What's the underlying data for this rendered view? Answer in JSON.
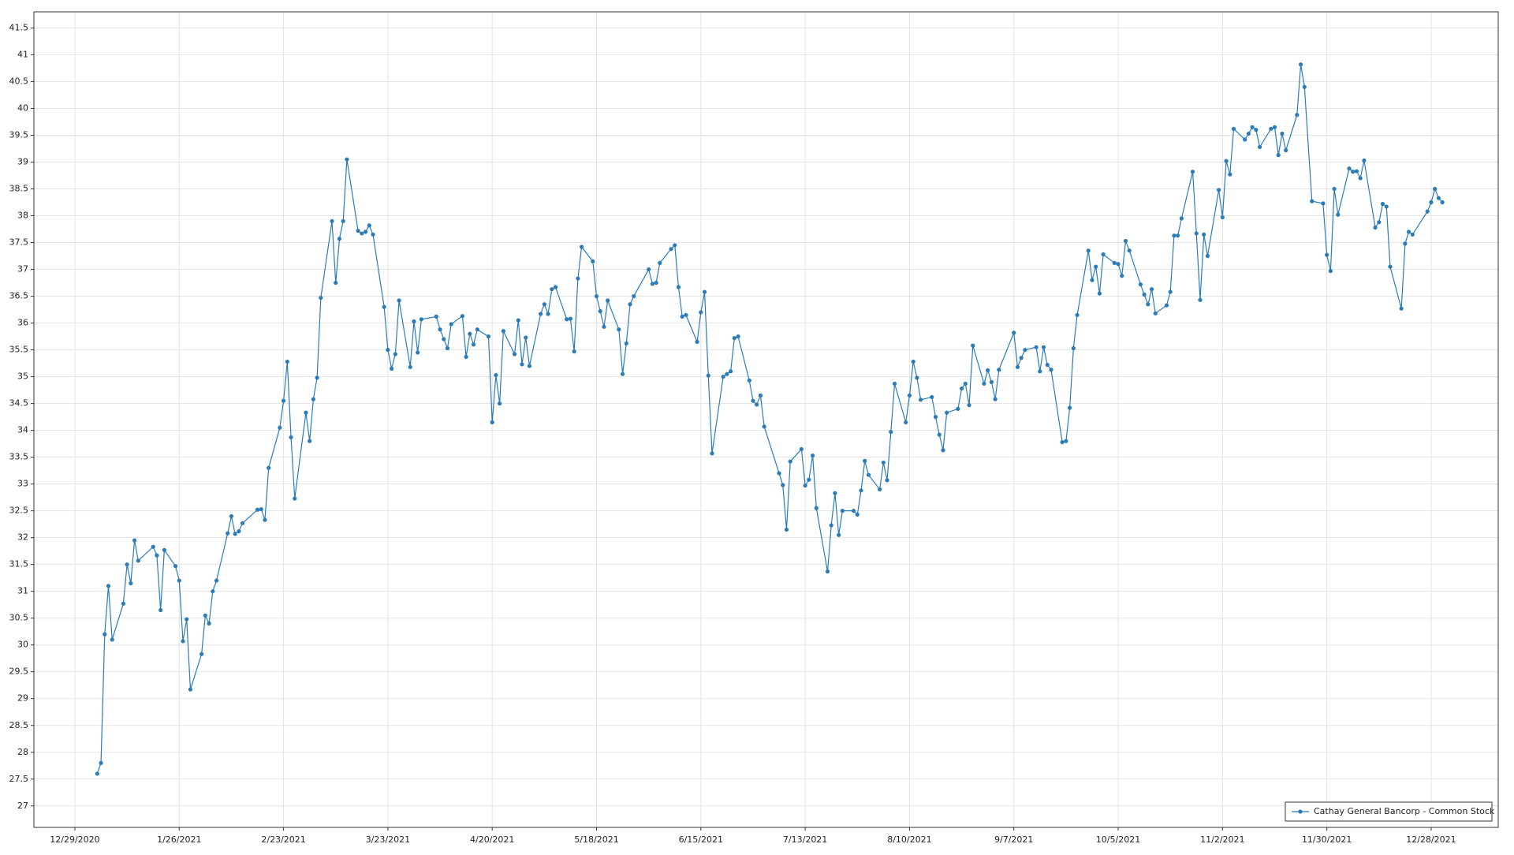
{
  "chart_data": {
    "type": "line",
    "x": [
      "1/4/2021",
      "1/5/2021",
      "1/6/2021",
      "1/7/2021",
      "1/8/2021",
      "1/11/2021",
      "1/12/2021",
      "1/13/2021",
      "1/14/2021",
      "1/15/2021",
      "1/19/2021",
      "1/20/2021",
      "1/21/2021",
      "1/22/2021",
      "1/25/2021",
      "1/26/2021",
      "1/27/2021",
      "1/28/2021",
      "1/29/2021",
      "2/1/2021",
      "2/2/2021",
      "2/3/2021",
      "2/4/2021",
      "2/5/2021",
      "2/8/2021",
      "2/9/2021",
      "2/10/2021",
      "2/11/2021",
      "2/12/2021",
      "2/16/2021",
      "2/17/2021",
      "2/18/2021",
      "2/19/2021",
      "2/22/2021",
      "2/23/2021",
      "2/24/2021",
      "2/25/2021",
      "2/26/2021",
      "3/1/2021",
      "3/2/2021",
      "3/3/2021",
      "3/4/2021",
      "3/5/2021",
      "3/8/2021",
      "3/9/2021",
      "3/10/2021",
      "3/11/2021",
      "3/12/2021",
      "3/15/2021",
      "3/16/2021",
      "3/17/2021",
      "3/18/2021",
      "3/19/2021",
      "3/22/2021",
      "3/23/2021",
      "3/24/2021",
      "3/25/2021",
      "3/26/2021",
      "3/29/2021",
      "3/30/2021",
      "3/31/2021",
      "4/1/2021",
      "4/5/2021",
      "4/6/2021",
      "4/7/2021",
      "4/8/2021",
      "4/9/2021",
      "4/12/2021",
      "4/13/2021",
      "4/14/2021",
      "4/15/2021",
      "4/16/2021",
      "4/19/2021",
      "4/20/2021",
      "4/21/2021",
      "4/22/2021",
      "4/23/2021",
      "4/26/2021",
      "4/27/2021",
      "4/28/2021",
      "4/29/2021",
      "4/30/2021",
      "5/3/2021",
      "5/4/2021",
      "5/5/2021",
      "5/6/2021",
      "5/7/2021",
      "5/10/2021",
      "5/11/2021",
      "5/12/2021",
      "5/13/2021",
      "5/14/2021",
      "5/17/2021",
      "5/18/2021",
      "5/19/2021",
      "5/20/2021",
      "5/21/2021",
      "5/24/2021",
      "5/25/2021",
      "5/26/2021",
      "5/27/2021",
      "5/28/2021",
      "6/1/2021",
      "6/2/2021",
      "6/3/2021",
      "6/4/2021",
      "6/7/2021",
      "6/8/2021",
      "6/9/2021",
      "6/10/2021",
      "6/11/2021",
      "6/14/2021",
      "6/15/2021",
      "6/16/2021",
      "6/17/2021",
      "6/18/2021",
      "6/21/2021",
      "6/22/2021",
      "6/23/2021",
      "6/24/2021",
      "6/25/2021",
      "6/28/2021",
      "6/29/2021",
      "6/30/2021",
      "7/1/2021",
      "7/2/2021",
      "7/6/2021",
      "7/7/2021",
      "7/8/2021",
      "7/9/2021",
      "7/12/2021",
      "7/13/2021",
      "7/14/2021",
      "7/15/2021",
      "7/16/2021",
      "7/19/2021",
      "7/20/2021",
      "7/21/2021",
      "7/22/2021",
      "7/23/2021",
      "7/26/2021",
      "7/27/2021",
      "7/28/2021",
      "7/29/2021",
      "7/30/2021",
      "8/2/2021",
      "8/3/2021",
      "8/4/2021",
      "8/5/2021",
      "8/6/2021",
      "8/9/2021",
      "8/10/2021",
      "8/11/2021",
      "8/12/2021",
      "8/13/2021",
      "8/16/2021",
      "8/17/2021",
      "8/18/2021",
      "8/19/2021",
      "8/20/2021",
      "8/23/2021",
      "8/24/2021",
      "8/25/2021",
      "8/26/2021",
      "8/27/2021",
      "8/30/2021",
      "8/31/2021",
      "9/1/2021",
      "9/2/2021",
      "9/3/2021",
      "9/7/2021",
      "9/8/2021",
      "9/9/2021",
      "9/10/2021",
      "9/13/2021",
      "9/14/2021",
      "9/15/2021",
      "9/16/2021",
      "9/17/2021",
      "9/20/2021",
      "9/21/2021",
      "9/22/2021",
      "9/23/2021",
      "9/24/2021",
      "9/27/2021",
      "9/28/2021",
      "9/29/2021",
      "9/30/2021",
      "10/1/2021",
      "10/4/2021",
      "10/5/2021",
      "10/6/2021",
      "10/7/2021",
      "10/8/2021",
      "10/11/2021",
      "10/12/2021",
      "10/13/2021",
      "10/14/2021",
      "10/15/2021",
      "10/18/2021",
      "10/19/2021",
      "10/20/2021",
      "10/21/2021",
      "10/22/2021",
      "10/25/2021",
      "10/26/2021",
      "10/27/2021",
      "10/28/2021",
      "10/29/2021",
      "11/1/2021",
      "11/2/2021",
      "11/3/2021",
      "11/4/2021",
      "11/5/2021",
      "11/8/2021",
      "11/9/2021",
      "11/10/2021",
      "11/11/2021",
      "11/12/2021",
      "11/15/2021",
      "11/16/2021",
      "11/17/2021",
      "11/18/2021",
      "11/19/2021",
      "11/22/2021",
      "11/23/2021",
      "11/24/2021",
      "11/26/2021",
      "11/29/2021",
      "11/30/2021",
      "12/1/2021",
      "12/2/2021",
      "12/3/2021",
      "12/6/2021",
      "12/7/2021",
      "12/8/2021",
      "12/9/2021",
      "12/10/2021",
      "12/13/2021",
      "12/14/2021",
      "12/15/2021",
      "12/16/2021",
      "12/17/2021",
      "12/20/2021",
      "12/21/2021",
      "12/22/2021",
      "12/23/2021",
      "12/27/2021",
      "12/28/2021",
      "12/29/2021",
      "12/30/2021",
      "12/31/2021"
    ],
    "series": [
      {
        "name": "Cathay General Bancorp - Common Stock",
        "color": "#2b7bb9",
        "values": [
          27.6,
          27.8,
          30.2,
          31.1,
          30.1,
          30.77,
          31.5,
          31.15,
          31.95,
          31.57,
          31.83,
          31.67,
          30.65,
          31.77,
          31.47,
          31.2,
          30.07,
          30.48,
          29.17,
          29.83,
          30.55,
          30.4,
          31.0,
          31.2,
          32.08,
          32.4,
          32.07,
          32.12,
          32.27,
          32.52,
          32.53,
          32.33,
          33.3,
          34.05,
          34.55,
          35.28,
          33.87,
          32.73,
          34.33,
          33.8,
          34.58,
          34.98,
          36.47,
          37.9,
          36.75,
          37.57,
          37.9,
          39.05,
          37.72,
          37.67,
          37.7,
          37.82,
          37.65,
          36.3,
          35.5,
          35.15,
          35.42,
          36.42,
          35.18,
          36.03,
          35.45,
          36.07,
          36.12,
          35.88,
          35.7,
          35.53,
          35.98,
          36.13,
          35.37,
          35.8,
          35.6,
          35.88,
          35.75,
          34.15,
          35.03,
          34.5,
          35.85,
          35.42,
          36.05,
          35.23,
          35.73,
          35.2,
          36.17,
          36.35,
          36.17,
          36.63,
          36.67,
          36.07,
          36.08,
          35.47,
          36.83,
          37.42,
          37.15,
          36.5,
          36.22,
          35.93,
          36.42,
          35.88,
          35.05,
          35.62,
          36.35,
          36.5,
          37.0,
          36.73,
          36.75,
          37.12,
          37.38,
          37.45,
          36.67,
          36.12,
          36.15,
          35.65,
          36.2,
          36.58,
          35.02,
          33.57,
          35.0,
          35.05,
          35.1,
          35.72,
          35.75,
          34.93,
          34.55,
          34.48,
          34.65,
          34.07,
          33.2,
          32.98,
          32.15,
          33.42,
          33.65,
          32.97,
          33.08,
          33.53,
          32.55,
          31.37,
          32.23,
          32.83,
          32.05,
          32.5,
          32.5,
          32.43,
          32.88,
          33.43,
          33.17,
          32.9,
          33.4,
          33.07,
          33.97,
          34.87,
          34.15,
          34.65,
          35.28,
          34.98,
          34.57,
          34.62,
          34.25,
          33.92,
          33.63,
          34.33,
          34.4,
          34.78,
          34.87,
          34.47,
          35.58,
          34.87,
          35.12,
          34.9,
          34.58,
          35.13,
          35.82,
          35.18,
          35.35,
          35.5,
          35.55,
          35.1,
          35.55,
          35.22,
          35.13,
          33.78,
          33.8,
          34.42,
          35.53,
          36.15,
          37.35,
          36.8,
          37.05,
          36.55,
          37.28,
          37.12,
          37.1,
          36.88,
          37.53,
          37.35,
          36.72,
          36.53,
          36.35,
          36.63,
          36.18,
          36.33,
          36.58,
          37.63,
          37.63,
          37.95,
          38.82,
          37.67,
          36.43,
          37.65,
          37.25,
          38.48,
          37.97,
          39.02,
          38.77,
          39.62,
          39.42,
          39.53,
          39.65,
          39.6,
          39.28,
          39.62,
          39.65,
          39.13,
          39.53,
          39.22,
          39.88,
          40.82,
          40.4,
          38.27,
          38.23,
          37.27,
          36.97,
          38.5,
          38.02,
          38.88,
          38.82,
          38.83,
          38.7,
          39.03,
          37.78,
          37.88,
          38.22,
          38.17,
          37.05,
          36.27,
          37.48,
          37.7,
          37.65,
          38.08,
          38.25,
          38.5,
          38.33,
          38.25
        ]
      }
    ],
    "xlim": [
      "12/18/2020",
      "1/15/2022"
    ],
    "xticks": [
      "12/29/2020",
      "1/26/2021",
      "2/23/2021",
      "3/23/2021",
      "4/20/2021",
      "5/18/2021",
      "6/15/2021",
      "7/13/2021",
      "8/10/2021",
      "9/7/2021",
      "10/5/2021",
      "11/2/2021",
      "11/30/2021",
      "12/28/2021"
    ],
    "ylim": [
      26.6,
      41.8
    ],
    "yticks": [
      27,
      27.5,
      28,
      28.5,
      29,
      29.5,
      30,
      30.5,
      31,
      31.5,
      32,
      32.5,
      33,
      33.5,
      34,
      34.5,
      35,
      35.5,
      36,
      36.5,
      37,
      37.5,
      38,
      38.5,
      39,
      39.5,
      40,
      40.5,
      41,
      41.5
    ],
    "grid": true,
    "legend": "bottom-right"
  }
}
